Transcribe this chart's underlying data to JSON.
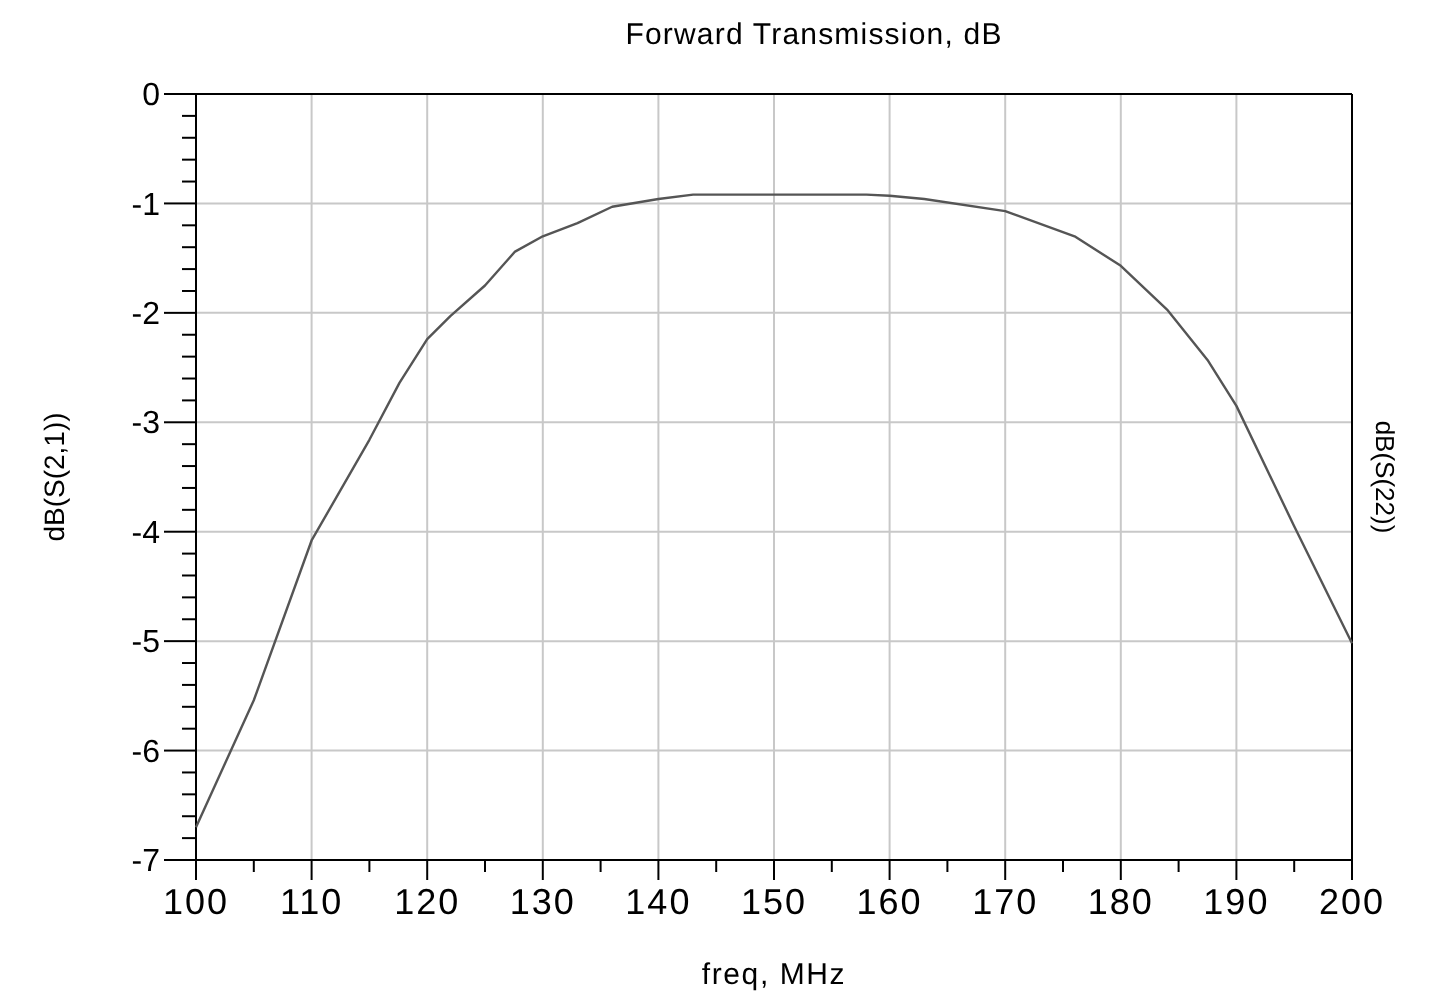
{
  "chart_data": {
    "type": "line",
    "title": "Forward Transmission, dB",
    "xlabel": "freq, MHz",
    "ylabel": "dB(S(2,1))",
    "y2label": "dB(S(22))",
    "x": [
      100,
      105,
      110,
      115,
      117.6,
      120,
      122,
      125,
      127.6,
      130,
      133,
      136,
      140,
      143,
      150,
      158,
      160,
      163,
      170,
      176,
      180,
      184,
      187.5,
      190,
      195,
      200
    ],
    "series": [
      {
        "color": "#555555",
        "values": [
          -6.7,
          -5.54,
          -4.08,
          -3.16,
          -2.64,
          -2.24,
          -2.03,
          -1.75,
          -1.44,
          -1.3,
          -1.18,
          -1.03,
          -0.96,
          -0.92,
          -0.92,
          -0.92,
          -0.93,
          -0.96,
          -1.07,
          -1.3,
          -1.57,
          -1.97,
          -2.43,
          -2.85,
          -3.95,
          -5.02
        ]
      }
    ],
    "xlim": [
      100,
      200
    ],
    "ylim": [
      -7,
      0
    ],
    "xticks": [
      100,
      {
        "value": 105,
        "label": null
      },
      110,
      {
        "value": 115,
        "label": null
      },
      120,
      {
        "value": 125,
        "label": null
      },
      130,
      {
        "value": 135,
        "label": null
      },
      140,
      {
        "value": 145,
        "label": null
      },
      150,
      {
        "value": 155,
        "label": null
      },
      160,
      {
        "value": 165,
        "label": null
      },
      170,
      {
        "value": 175,
        "label": null
      },
      180,
      {
        "value": 185,
        "label": null
      },
      190,
      {
        "value": 195,
        "label": null
      },
      200
    ],
    "yticks": [
      -7,
      {
        "value": -6.8,
        "label": null
      },
      {
        "value": -6.6,
        "label": null
      },
      {
        "value": -6.4,
        "label": null
      },
      {
        "value": -6.2,
        "label": null
      },
      -6,
      {
        "value": -5.8,
        "label": null
      },
      {
        "value": -5.6,
        "label": null
      },
      {
        "value": -5.4,
        "label": null
      },
      {
        "value": -5.2,
        "label": null
      },
      -5,
      {
        "value": -4.8,
        "label": null
      },
      {
        "value": -4.6,
        "label": null
      },
      {
        "value": -4.4,
        "label": null
      },
      {
        "value": -4.2,
        "label": null
      },
      -4,
      {
        "value": -3.8,
        "label": null
      },
      {
        "value": -3.6,
        "label": null
      },
      {
        "value": -3.4,
        "label": null
      },
      {
        "value": -3.2,
        "label": null
      },
      -3,
      {
        "value": -2.8,
        "label": null
      },
      {
        "value": -2.6,
        "label": null
      },
      {
        "value": -2.4,
        "label": null
      },
      {
        "value": -2.2,
        "label": null
      },
      -2,
      {
        "value": -1.8,
        "label": null
      },
      {
        "value": -1.6,
        "label": null
      },
      {
        "value": -1.4,
        "label": null
      },
      {
        "value": -1.2,
        "label": null
      },
      -1,
      {
        "value": -0.8,
        "label": null
      },
      {
        "value": -0.6,
        "label": null
      },
      {
        "value": -0.4,
        "label": null
      },
      {
        "value": -0.2,
        "label": null
      },
      0
    ],
    "grid": true,
    "line_style": "solid"
  }
}
